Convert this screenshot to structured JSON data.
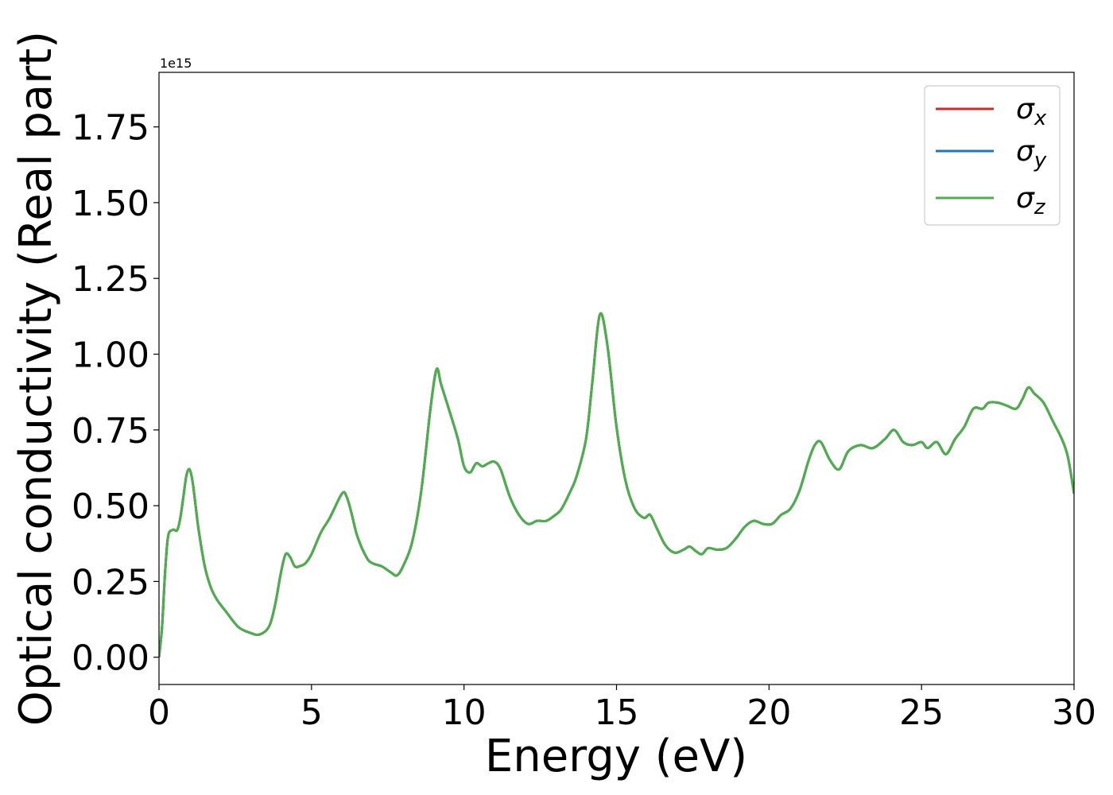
{
  "chart_data": {
    "type": "line",
    "title": "",
    "xlabel": "Energy (eV)",
    "ylabel": "Optical conductivity (Real part)",
    "y_multiplier": "1e15",
    "xlim": [
      0,
      30
    ],
    "ylim": [
      -0.09,
      1.93
    ],
    "x_ticks": [
      "0",
      "5",
      "10",
      "15",
      "20",
      "25",
      "30"
    ],
    "y_ticks": [
      "0.00",
      "0.25",
      "0.50",
      "0.75",
      "1.00",
      "1.25",
      "1.50",
      "1.75"
    ],
    "grid": false,
    "legend_position": "top-right",
    "x": [
      0,
      0.1,
      0.2,
      0.3,
      0.45,
      0.5,
      0.6,
      0.7,
      0.8,
      0.9,
      1.0,
      1.1,
      1.2,
      1.3,
      1.5,
      1.7,
      1.9,
      2.2,
      2.6,
      3.0,
      3.3,
      3.6,
      3.8,
      4.0,
      4.15,
      4.3,
      4.45,
      4.6,
      4.8,
      5.0,
      5.3,
      5.6,
      6.0,
      6.15,
      6.3,
      6.5,
      6.8,
      7.0,
      7.3,
      7.6,
      7.8,
      8.0,
      8.3,
      8.6,
      8.9,
      9.1,
      9.25,
      9.5,
      9.8,
      10.0,
      10.2,
      10.4,
      10.6,
      10.8,
      11.0,
      11.2,
      11.5,
      11.8,
      12.1,
      12.4,
      12.7,
      13.0,
      13.2,
      13.5,
      13.7,
      14.0,
      14.2,
      14.45,
      14.7,
      15.0,
      15.3,
      15.6,
      15.9,
      16.1,
      16.3,
      16.6,
      16.9,
      17.2,
      17.4,
      17.6,
      17.8,
      18.0,
      18.3,
      18.6,
      18.9,
      19.2,
      19.5,
      19.8,
      20.1,
      20.4,
      20.7,
      21.0,
      21.3,
      21.5,
      21.7,
      22.0,
      22.3,
      22.6,
      23.0,
      23.4,
      23.8,
      24.1,
      24.4,
      24.7,
      25.0,
      25.2,
      25.5,
      25.8,
      26.1,
      26.4,
      26.7,
      27.0,
      27.2,
      27.5,
      27.8,
      28.1,
      28.3,
      28.5,
      28.7,
      29.0,
      29.3,
      29.6,
      29.8,
      30.0
    ],
    "series": [
      {
        "name": "σx",
        "label_main": "σ",
        "label_sub": "x",
        "color": "#d62728",
        "values": [
          0.0,
          0.1,
          0.28,
          0.4,
          0.42,
          0.42,
          0.42,
          0.46,
          0.53,
          0.6,
          0.62,
          0.58,
          0.5,
          0.42,
          0.3,
          0.23,
          0.19,
          0.15,
          0.1,
          0.08,
          0.075,
          0.1,
          0.17,
          0.28,
          0.34,
          0.33,
          0.3,
          0.3,
          0.31,
          0.34,
          0.41,
          0.46,
          0.54,
          0.53,
          0.48,
          0.4,
          0.33,
          0.31,
          0.3,
          0.28,
          0.27,
          0.3,
          0.38,
          0.55,
          0.82,
          0.95,
          0.9,
          0.82,
          0.72,
          0.63,
          0.61,
          0.64,
          0.63,
          0.64,
          0.645,
          0.62,
          0.53,
          0.47,
          0.44,
          0.45,
          0.45,
          0.47,
          0.49,
          0.55,
          0.6,
          0.72,
          0.9,
          1.13,
          1.03,
          0.76,
          0.58,
          0.49,
          0.46,
          0.47,
          0.43,
          0.37,
          0.345,
          0.355,
          0.365,
          0.35,
          0.34,
          0.36,
          0.355,
          0.36,
          0.39,
          0.43,
          0.45,
          0.44,
          0.44,
          0.47,
          0.49,
          0.55,
          0.65,
          0.7,
          0.71,
          0.65,
          0.62,
          0.68,
          0.7,
          0.69,
          0.72,
          0.75,
          0.71,
          0.7,
          0.71,
          0.69,
          0.71,
          0.67,
          0.72,
          0.76,
          0.82,
          0.82,
          0.84,
          0.84,
          0.83,
          0.82,
          0.85,
          0.89,
          0.87,
          0.84,
          0.78,
          0.72,
          0.66,
          0.54
        ]
      },
      {
        "name": "σy",
        "label_main": "σ",
        "label_sub": "y",
        "color": "#1f77b4",
        "values": [
          0.0,
          0.1,
          0.28,
          0.4,
          0.42,
          0.42,
          0.42,
          0.46,
          0.53,
          0.6,
          0.62,
          0.58,
          0.5,
          0.42,
          0.3,
          0.23,
          0.19,
          0.15,
          0.1,
          0.08,
          0.075,
          0.1,
          0.17,
          0.28,
          0.34,
          0.33,
          0.3,
          0.3,
          0.31,
          0.34,
          0.41,
          0.46,
          0.54,
          0.53,
          0.48,
          0.4,
          0.33,
          0.31,
          0.3,
          0.28,
          0.27,
          0.3,
          0.38,
          0.55,
          0.82,
          0.95,
          0.9,
          0.82,
          0.72,
          0.63,
          0.61,
          0.64,
          0.63,
          0.64,
          0.645,
          0.62,
          0.53,
          0.47,
          0.44,
          0.45,
          0.45,
          0.47,
          0.49,
          0.55,
          0.6,
          0.72,
          0.9,
          1.13,
          1.03,
          0.76,
          0.58,
          0.49,
          0.46,
          0.47,
          0.43,
          0.37,
          0.345,
          0.355,
          0.365,
          0.35,
          0.34,
          0.36,
          0.355,
          0.36,
          0.39,
          0.43,
          0.45,
          0.44,
          0.44,
          0.47,
          0.49,
          0.55,
          0.65,
          0.7,
          0.71,
          0.65,
          0.62,
          0.68,
          0.7,
          0.69,
          0.72,
          0.75,
          0.71,
          0.7,
          0.71,
          0.69,
          0.71,
          0.67,
          0.72,
          0.76,
          0.82,
          0.82,
          0.84,
          0.84,
          0.83,
          0.82,
          0.85,
          0.89,
          0.87,
          0.84,
          0.78,
          0.72,
          0.66,
          0.54
        ]
      },
      {
        "name": "σz",
        "label_main": "σ",
        "label_sub": "z",
        "color": "#4daf4a",
        "values": [
          0.0,
          0.1,
          0.28,
          0.4,
          0.42,
          0.42,
          0.42,
          0.46,
          0.53,
          0.6,
          0.62,
          0.58,
          0.5,
          0.42,
          0.3,
          0.23,
          0.19,
          0.15,
          0.1,
          0.08,
          0.075,
          0.1,
          0.17,
          0.28,
          0.34,
          0.33,
          0.3,
          0.3,
          0.31,
          0.34,
          0.41,
          0.46,
          0.54,
          0.53,
          0.48,
          0.4,
          0.33,
          0.31,
          0.3,
          0.28,
          0.27,
          0.3,
          0.38,
          0.55,
          0.82,
          0.95,
          0.9,
          0.82,
          0.72,
          0.63,
          0.61,
          0.64,
          0.63,
          0.64,
          0.645,
          0.62,
          0.53,
          0.47,
          0.44,
          0.45,
          0.45,
          0.47,
          0.49,
          0.55,
          0.6,
          0.72,
          0.9,
          1.13,
          1.03,
          0.76,
          0.58,
          0.49,
          0.46,
          0.47,
          0.43,
          0.37,
          0.345,
          0.355,
          0.365,
          0.35,
          0.34,
          0.36,
          0.355,
          0.36,
          0.39,
          0.43,
          0.45,
          0.44,
          0.44,
          0.47,
          0.49,
          0.55,
          0.65,
          0.7,
          0.71,
          0.65,
          0.62,
          0.68,
          0.7,
          0.69,
          0.72,
          0.75,
          0.71,
          0.7,
          0.71,
          0.69,
          0.71,
          0.67,
          0.72,
          0.76,
          0.82,
          0.82,
          0.84,
          0.84,
          0.83,
          0.82,
          0.85,
          0.89,
          0.87,
          0.84,
          0.78,
          0.72,
          0.66,
          0.54
        ]
      }
    ]
  }
}
